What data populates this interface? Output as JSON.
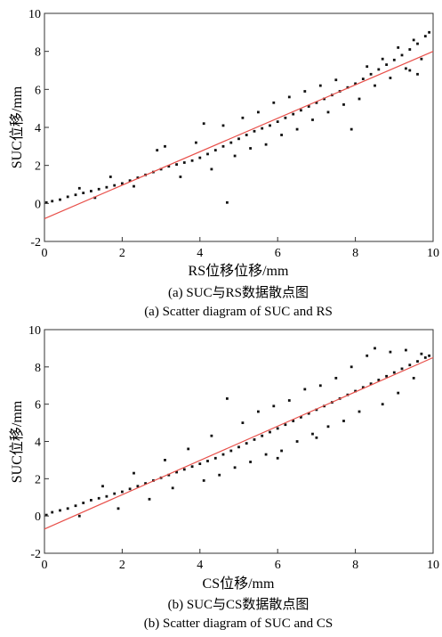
{
  "chart_data": [
    {
      "type": "scatter",
      "panel": "a",
      "xlabel": "RS位移位移/mm",
      "ylabel": "SUC位移/mm",
      "caption_cn": "(a) SUC与RS数据散点图",
      "caption_en": "(a) Scatter diagram of SUC and RS",
      "xlim": [
        0,
        10
      ],
      "ylim": [
        -2,
        10
      ],
      "xticks": [
        "0",
        "2",
        "4",
        "6",
        "8",
        "10"
      ],
      "yticks": [
        "-2",
        "0",
        "2",
        "4",
        "6",
        "8",
        "10"
      ],
      "grid": false,
      "point_color": "#111111",
      "fit_color": "#e8504a",
      "fit_line": {
        "x": [
          0,
          10
        ],
        "y": [
          -0.8,
          8.0
        ]
      },
      "points": [
        [
          0.05,
          0.05
        ],
        [
          0.2,
          0.12
        ],
        [
          0.4,
          0.2
        ],
        [
          0.6,
          0.35
        ],
        [
          0.8,
          0.45
        ],
        [
          1.0,
          0.55
        ],
        [
          1.2,
          0.65
        ],
        [
          1.4,
          0.75
        ],
        [
          1.6,
          0.85
        ],
        [
          1.8,
          0.95
        ],
        [
          2.0,
          1.05
        ],
        [
          2.2,
          1.2
        ],
        [
          2.4,
          1.35
        ],
        [
          2.6,
          1.5
        ],
        [
          2.8,
          1.65
        ],
        [
          3.0,
          1.8
        ],
        [
          3.2,
          1.95
        ],
        [
          3.4,
          2.05
        ],
        [
          3.6,
          2.15
        ],
        [
          3.8,
          2.25
        ],
        [
          4.0,
          2.4
        ],
        [
          4.2,
          2.6
        ],
        [
          4.4,
          2.8
        ],
        [
          4.6,
          3.0
        ],
        [
          4.8,
          3.2
        ],
        [
          5.0,
          3.4
        ],
        [
          5.2,
          3.6
        ],
        [
          5.4,
          3.8
        ],
        [
          5.6,
          3.95
        ],
        [
          5.8,
          4.1
        ],
        [
          6.0,
          4.3
        ],
        [
          6.2,
          4.5
        ],
        [
          6.4,
          4.7
        ],
        [
          6.6,
          4.9
        ],
        [
          6.8,
          5.1
        ],
        [
          7.0,
          5.3
        ],
        [
          7.2,
          5.5
        ],
        [
          7.4,
          5.7
        ],
        [
          7.6,
          5.9
        ],
        [
          7.8,
          6.1
        ],
        [
          8.0,
          6.3
        ],
        [
          8.2,
          6.55
        ],
        [
          8.4,
          6.8
        ],
        [
          8.6,
          7.05
        ],
        [
          8.8,
          7.3
        ],
        [
          9.0,
          7.55
        ],
        [
          9.2,
          7.8
        ],
        [
          9.4,
          8.1
        ],
        [
          9.6,
          8.4
        ],
        [
          9.8,
          8.8
        ],
        [
          0.9,
          0.8
        ],
        [
          1.3,
          0.3
        ],
        [
          1.7,
          1.4
        ],
        [
          2.3,
          0.9
        ],
        [
          2.9,
          2.8
        ],
        [
          3.1,
          3.0
        ],
        [
          3.5,
          1.4
        ],
        [
          3.9,
          3.2
        ],
        [
          4.1,
          4.2
        ],
        [
          4.3,
          1.8
        ],
        [
          4.6,
          4.1
        ],
        [
          4.7,
          0.05
        ],
        [
          4.9,
          2.5
        ],
        [
          5.1,
          4.5
        ],
        [
          5.3,
          2.9
        ],
        [
          5.5,
          4.8
        ],
        [
          5.7,
          3.1
        ],
        [
          5.9,
          5.3
        ],
        [
          6.1,
          3.6
        ],
        [
          6.3,
          5.6
        ],
        [
          6.5,
          3.9
        ],
        [
          6.7,
          5.9
        ],
        [
          6.9,
          4.4
        ],
        [
          7.1,
          6.2
        ],
        [
          7.3,
          4.8
        ],
        [
          7.5,
          6.5
        ],
        [
          7.7,
          5.2
        ],
        [
          7.9,
          3.9
        ],
        [
          8.1,
          5.5
        ],
        [
          8.3,
          7.2
        ],
        [
          8.5,
          6.2
        ],
        [
          8.7,
          7.6
        ],
        [
          8.9,
          6.6
        ],
        [
          9.1,
          8.2
        ],
        [
          9.3,
          7.1
        ],
        [
          9.5,
          8.6
        ],
        [
          9.7,
          7.6
        ],
        [
          9.9,
          9.0
        ],
        [
          9.4,
          7.0
        ],
        [
          9.6,
          6.8
        ]
      ]
    },
    {
      "type": "scatter",
      "panel": "b",
      "xlabel": "CS位移/mm",
      "ylabel": "SUC位移/mm",
      "caption_cn": "(b) SUC与CS数据散点图",
      "caption_en": "(b) Scatter diagram of SUC and CS",
      "xlim": [
        0,
        10
      ],
      "ylim": [
        -2,
        10
      ],
      "xticks": [
        "0",
        "2",
        "4",
        "6",
        "8",
        "10"
      ],
      "yticks": [
        "-2",
        "0",
        "2",
        "4",
        "6",
        "8",
        "10"
      ],
      "grid": false,
      "point_color": "#111111",
      "fit_color": "#e8504a",
      "fit_line": {
        "x": [
          0,
          10
        ],
        "y": [
          -0.7,
          8.5
        ]
      },
      "points": [
        [
          0.05,
          0.05
        ],
        [
          0.2,
          0.2
        ],
        [
          0.4,
          0.3
        ],
        [
          0.6,
          0.4
        ],
        [
          0.8,
          0.55
        ],
        [
          1.0,
          0.7
        ],
        [
          1.2,
          0.85
        ],
        [
          1.4,
          0.95
        ],
        [
          1.6,
          1.05
        ],
        [
          1.8,
          1.2
        ],
        [
          2.0,
          1.3
        ],
        [
          2.2,
          1.45
        ],
        [
          2.4,
          1.6
        ],
        [
          2.6,
          1.75
        ],
        [
          2.8,
          1.9
        ],
        [
          3.0,
          2.05
        ],
        [
          3.2,
          2.2
        ],
        [
          3.4,
          2.35
        ],
        [
          3.6,
          2.5
        ],
        [
          3.8,
          2.65
        ],
        [
          4.0,
          2.8
        ],
        [
          4.2,
          2.95
        ],
        [
          4.4,
          3.1
        ],
        [
          4.6,
          3.3
        ],
        [
          4.8,
          3.5
        ],
        [
          5.0,
          3.7
        ],
        [
          5.2,
          3.9
        ],
        [
          5.4,
          4.1
        ],
        [
          5.6,
          4.3
        ],
        [
          5.8,
          4.5
        ],
        [
          6.0,
          4.7
        ],
        [
          6.2,
          4.9
        ],
        [
          6.4,
          5.1
        ],
        [
          6.6,
          5.3
        ],
        [
          6.8,
          5.5
        ],
        [
          7.0,
          5.7
        ],
        [
          7.2,
          5.9
        ],
        [
          7.4,
          6.1
        ],
        [
          7.6,
          6.3
        ],
        [
          7.8,
          6.5
        ],
        [
          8.0,
          6.7
        ],
        [
          8.2,
          6.9
        ],
        [
          8.4,
          7.1
        ],
        [
          8.6,
          7.3
        ],
        [
          8.8,
          7.5
        ],
        [
          9.0,
          7.7
        ],
        [
          9.2,
          7.9
        ],
        [
          9.4,
          8.1
        ],
        [
          9.6,
          8.3
        ],
        [
          9.8,
          8.5
        ],
        [
          0.9,
          0.0
        ],
        [
          1.5,
          1.6
        ],
        [
          1.9,
          0.4
        ],
        [
          2.3,
          2.3
        ],
        [
          2.7,
          0.9
        ],
        [
          3.1,
          3.0
        ],
        [
          3.3,
          1.5
        ],
        [
          3.7,
          3.6
        ],
        [
          4.1,
          1.9
        ],
        [
          4.3,
          4.3
        ],
        [
          4.5,
          2.2
        ],
        [
          4.7,
          6.3
        ],
        [
          4.9,
          2.6
        ],
        [
          5.1,
          5.0
        ],
        [
          5.3,
          2.9
        ],
        [
          5.5,
          5.6
        ],
        [
          5.7,
          3.3
        ],
        [
          5.9,
          5.9
        ],
        [
          6.1,
          3.5
        ],
        [
          6.3,
          6.2
        ],
        [
          6.5,
          4.0
        ],
        [
          6.7,
          6.8
        ],
        [
          6.9,
          4.4
        ],
        [
          7.1,
          7.0
        ],
        [
          7.3,
          4.8
        ],
        [
          7.5,
          7.4
        ],
        [
          7.7,
          5.1
        ],
        [
          7.9,
          8.0
        ],
        [
          8.1,
          5.6
        ],
        [
          8.3,
          8.6
        ],
        [
          8.5,
          9.0
        ],
        [
          8.7,
          6.0
        ],
        [
          8.9,
          8.8
        ],
        [
          9.1,
          6.6
        ],
        [
          9.3,
          8.9
        ],
        [
          9.5,
          7.4
        ],
        [
          9.7,
          8.7
        ],
        [
          9.9,
          8.6
        ],
        [
          6.0,
          3.1
        ],
        [
          7.0,
          4.2
        ]
      ]
    }
  ]
}
